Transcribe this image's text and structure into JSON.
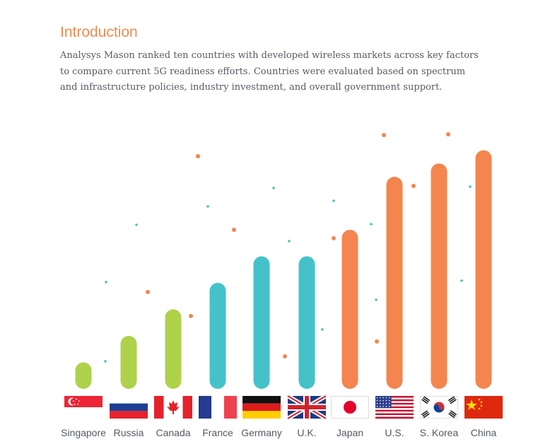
{
  "page": {
    "title": "Introduction",
    "paragraph": "Analysys Mason ranked ten countries with developed wireless markets across key factors to compare current 5G readiness efforts. Countries were evaluated based on spectrum and infrastructure policies, industry investment, and overall government support."
  },
  "colors": {
    "green": "#aed24a",
    "teal": "#45c2c9",
    "orange": "#f4854e"
  },
  "chart_data": {
    "type": "bar",
    "title": "",
    "xlabel": "",
    "ylabel": "",
    "grid": false,
    "legend": "none",
    "ylim": [
      0,
      10
    ],
    "categories": [
      "Singapore",
      "Russia",
      "Canada",
      "France",
      "Germany",
      "U.K.",
      "Japan",
      "U.S.",
      "S. Korea",
      "China"
    ],
    "flags": [
      "singapore",
      "russia",
      "canada",
      "france",
      "germany",
      "uk",
      "japan",
      "us",
      "south-korea",
      "china"
    ],
    "values": [
      1,
      2,
      3,
      4,
      5,
      5,
      6,
      8,
      8.5,
      9
    ],
    "bar_colors": [
      "green",
      "green",
      "green",
      "teal",
      "teal",
      "teal",
      "orange",
      "orange",
      "orange",
      "orange"
    ]
  }
}
